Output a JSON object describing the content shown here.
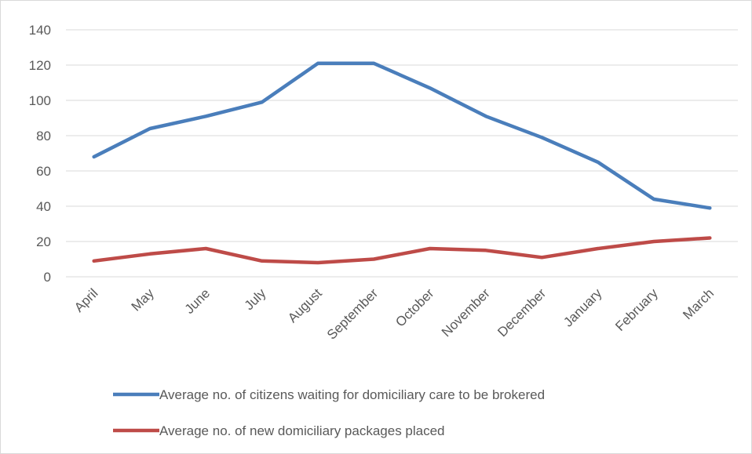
{
  "chart_data": {
    "type": "line",
    "title": "",
    "xlabel": "",
    "ylabel": "",
    "categories": [
      "April",
      "May",
      "June",
      "July",
      "August",
      "September",
      "October",
      "November",
      "December",
      "January",
      "February",
      "March"
    ],
    "ylim": [
      0,
      140
    ],
    "yticks": [
      0,
      20,
      40,
      60,
      80,
      100,
      120,
      140
    ],
    "grid": true,
    "legend_position": "bottom",
    "series": [
      {
        "name": "Average no. of citizens waiting for domiciliary care to be brokered",
        "color": "#4a7ebb",
        "values": [
          68,
          84,
          91,
          99,
          121,
          121,
          107,
          91,
          79,
          65,
          44,
          39
        ]
      },
      {
        "name": "Average no. of new domiciliary packages placed",
        "color": "#be4b48",
        "values": [
          9,
          13,
          16,
          9,
          8,
          10,
          16,
          15,
          11,
          16,
          20,
          22
        ]
      }
    ]
  }
}
